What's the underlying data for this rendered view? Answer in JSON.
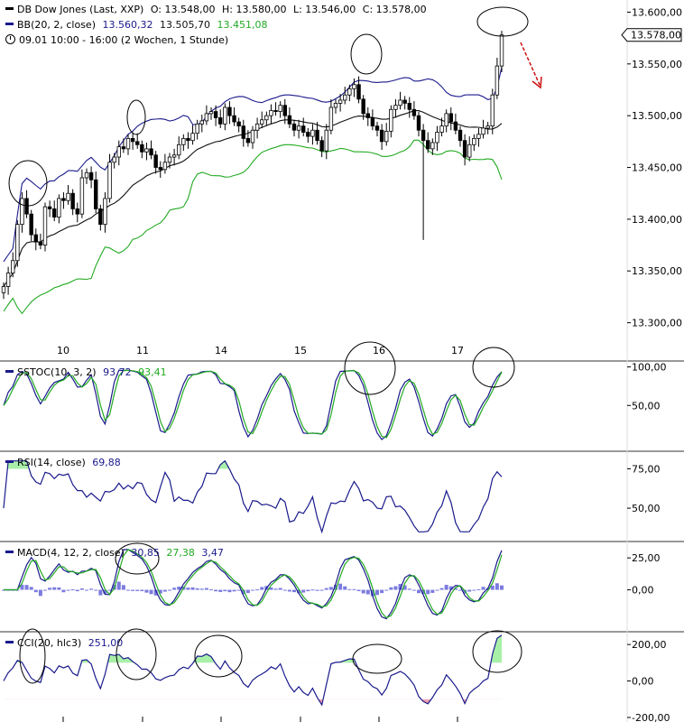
{
  "header": {
    "instrument": "DB Dow Jones (Last, XXP)",
    "open": "O: 13.548,00",
    "high": "H: 13.580,00",
    "low": "L: 13.546,00",
    "close": "C: 13.578,00",
    "bb_label": "BB(20, 2, close)",
    "bb_upper": "13.560,32",
    "bb_mid": "13.505,70",
    "bb_lower": "13.451,08",
    "period": "09.01 10:00 - 16:00 (2 Wochen, 1 Stunde)",
    "last_price_tag": "13.578,00"
  },
  "panels": {
    "sstoc": {
      "label": "SSTOC(10, 3, 2)",
      "v1": "93,72",
      "v2": "93,41"
    },
    "rsi": {
      "label": "RSI(14, close)",
      "v1": "69,88"
    },
    "macd": {
      "label": "MACD(4, 12, 2, close)",
      "v1": "30,85",
      "v2": "27,38",
      "v3": "3,47"
    },
    "cci": {
      "label": "CCI(20, hlc3)",
      "v1": "251,00"
    }
  },
  "colors": {
    "blue": "#1a1a8c",
    "green": "#22aa22",
    "black": "#111111",
    "red": "#cc1111",
    "hist": "#7b7be0",
    "fill_green": "#a8f0a8",
    "fill_red": "#f0a0b0"
  },
  "chart_data": [
    {
      "type": "candlestick",
      "title": "DB Dow Jones (Last, XXP)",
      "x_ticks": [
        "10",
        "11",
        "14",
        "15",
        "16",
        "17"
      ],
      "y_ticks": [
        "13.300,00",
        "13.350,00",
        "13.400,00",
        "13.450,00",
        "13.500,00",
        "13.550,00",
        "13.600,00"
      ],
      "ylim": [
        13270,
        13610
      ],
      "close": [
        13335,
        13348,
        13360,
        13395,
        13420,
        13405,
        13385,
        13378,
        13375,
        13412,
        13410,
        13402,
        13420,
        13418,
        13425,
        13410,
        13405,
        13440,
        13445,
        13438,
        13410,
        13395,
        13420,
        13455,
        13460,
        13470,
        13468,
        13478,
        13475,
        13472,
        13465,
        13468,
        13462,
        13450,
        13448,
        13455,
        13460,
        13462,
        13472,
        13478,
        13476,
        13483,
        13492,
        13495,
        13502,
        13504,
        13498,
        13492,
        13508,
        13500,
        13494,
        13490,
        13478,
        13474,
        13486,
        13492,
        13496,
        13500,
        13505,
        13504,
        13510,
        13500,
        13492,
        13486,
        13490,
        13484,
        13480,
        13486,
        13476,
        13466,
        13486,
        13508,
        13512,
        13515,
        13520,
        13526,
        13530,
        13516,
        13502,
        13498,
        13490,
        13486,
        13475,
        13485,
        13506,
        13510,
        13515,
        13512,
        13506,
        13500,
        13486,
        13476,
        13468,
        13474,
        13484,
        13490,
        13502,
        13494,
        13486,
        13476,
        13460,
        13472,
        13478,
        13482,
        13488,
        13490,
        13520,
        13548,
        13578
      ],
      "bollinger": {
        "upper": "13.560,32",
        "middle": "13.505,70",
        "lower": "13.451,08"
      },
      "last_price_tag": 13578,
      "annotations": [
        "circles around local highs",
        "red arrow pointing down at top-right"
      ]
    },
    {
      "type": "line",
      "title": "SSTOC(10, 3, 2)",
      "y_ticks": [
        "50,00",
        "100,00"
      ],
      "ylim": [
        0,
        110
      ],
      "series": [
        {
          "name": "%K",
          "values": [
            93.72
          ]
        },
        {
          "name": "%D",
          "values": [
            93.41
          ]
        }
      ]
    },
    {
      "type": "line",
      "title": "RSI(14, close)",
      "y_ticks": [
        "50,00",
        "75,00"
      ],
      "ylim": [
        30,
        85
      ],
      "series": [
        {
          "name": "RSI",
          "values": [
            69.88
          ]
        }
      ]
    },
    {
      "type": "line",
      "title": "MACD(4, 12, 2, close)",
      "y_ticks": [
        "0,00",
        "25,00"
      ],
      "ylim": [
        -30,
        35
      ],
      "series": [
        {
          "name": "MACD",
          "values": [
            30.85
          ]
        },
        {
          "name": "Signal",
          "values": [
            27.38
          ]
        },
        {
          "name": "Histogram",
          "values": [
            3.47
          ]
        }
      ]
    },
    {
      "type": "area",
      "title": "CCI(20, hlc3)",
      "y_ticks": [
        "-200,00",
        "0,00",
        "200,00"
      ],
      "ylim": [
        -215,
        260
      ],
      "series": [
        {
          "name": "CCI",
          "values": [
            251.0
          ]
        }
      ]
    }
  ]
}
